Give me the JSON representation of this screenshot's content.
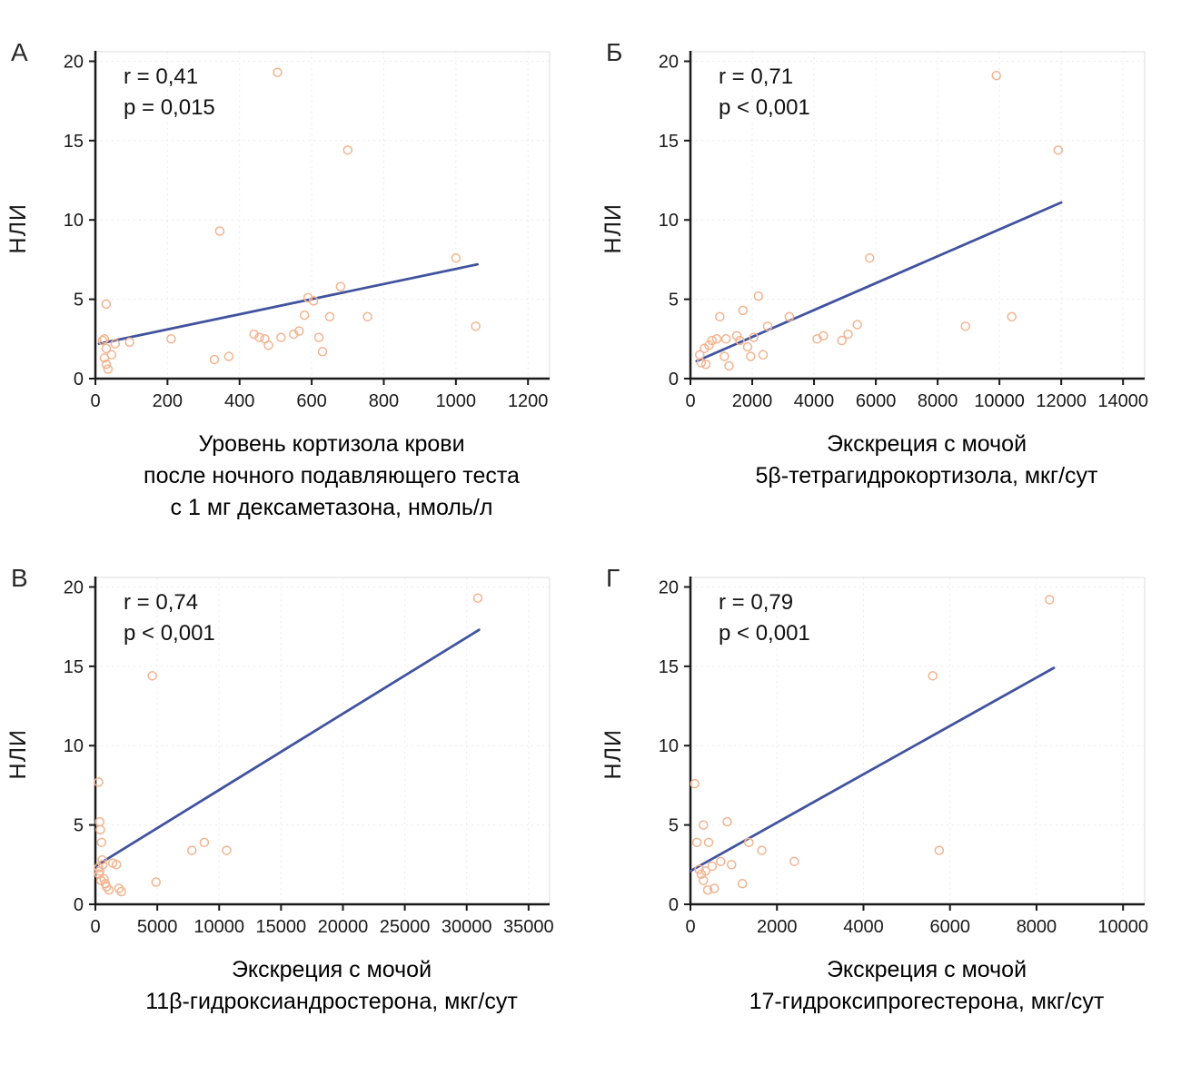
{
  "colors": {
    "point": "#f2b38f",
    "trend": "#41539e",
    "axis": "#1a1a1a",
    "grid": "#ececec",
    "frame": "#dcdcdc",
    "text": "#1a1a1a"
  },
  "chart_data": [
    {
      "type": "scatter",
      "panel": "А",
      "annotation": "r = 0,41\np = 0,015",
      "ylabel": "НЛИ",
      "caption": "Уровень кортизола крови\nпосле ночного подавляющего теста\nс 1 мг дексаметазона, нмоль/л",
      "xlim": [
        0,
        1260
      ],
      "ylim": [
        0,
        20.6
      ],
      "xticks": [
        0,
        200,
        400,
        600,
        800,
        1000,
        1200
      ],
      "yticks": [
        0,
        5,
        10,
        15,
        20
      ],
      "points": [
        [
          20,
          2.4
        ],
        [
          25,
          2.5
        ],
        [
          30,
          1.9
        ],
        [
          25,
          1.3
        ],
        [
          30,
          0.9
        ],
        [
          35,
          0.6
        ],
        [
          45,
          1.5
        ],
        [
          30,
          4.7
        ],
        [
          55,
          2.2
        ],
        [
          95,
          2.3
        ],
        [
          210,
          2.5
        ],
        [
          330,
          1.2
        ],
        [
          345,
          9.3
        ],
        [
          370,
          1.4
        ],
        [
          440,
          2.8
        ],
        [
          455,
          2.6
        ],
        [
          470,
          2.5
        ],
        [
          480,
          2.1
        ],
        [
          505,
          19.3
        ],
        [
          515,
          2.6
        ],
        [
          550,
          2.8
        ],
        [
          565,
          3.0
        ],
        [
          580,
          4.0
        ],
        [
          590,
          5.1
        ],
        [
          605,
          4.9
        ],
        [
          620,
          2.6
        ],
        [
          630,
          1.7
        ],
        [
          650,
          3.9
        ],
        [
          680,
          5.8
        ],
        [
          700,
          14.4
        ],
        [
          755,
          3.9
        ],
        [
          1000,
          7.6
        ],
        [
          1055,
          3.3
        ]
      ],
      "trend": {
        "x": [
          10,
          1060
        ],
        "y": [
          2.2,
          7.2
        ]
      }
    },
    {
      "type": "scatter",
      "panel": "Б",
      "annotation": "r = 0,71\np < 0,001",
      "ylabel": "НЛИ",
      "caption": "Экскреция с мочой\n5β-тетрагидрокортизола, мкг/сут",
      "xlim": [
        0,
        14700
      ],
      "ylim": [
        0,
        20.6
      ],
      "xticks": [
        0,
        2000,
        4000,
        6000,
        8000,
        10000,
        12000,
        14000
      ],
      "yticks": [
        0,
        5,
        10,
        15,
        20
      ],
      "points": [
        [
          300,
          1.5
        ],
        [
          350,
          1.0
        ],
        [
          450,
          1.9
        ],
        [
          500,
          0.9
        ],
        [
          600,
          2.1
        ],
        [
          700,
          2.4
        ],
        [
          850,
          2.5
        ],
        [
          950,
          3.9
        ],
        [
          1100,
          1.4
        ],
        [
          1150,
          2.5
        ],
        [
          1250,
          0.8
        ],
        [
          1500,
          2.7
        ],
        [
          1600,
          2.4
        ],
        [
          1700,
          4.3
        ],
        [
          1850,
          2.0
        ],
        [
          1950,
          1.4
        ],
        [
          2050,
          2.6
        ],
        [
          2200,
          5.2
        ],
        [
          2350,
          1.5
        ],
        [
          2500,
          3.3
        ],
        [
          3200,
          3.9
        ],
        [
          4100,
          2.5
        ],
        [
          4300,
          2.7
        ],
        [
          4900,
          2.4
        ],
        [
          5100,
          2.8
        ],
        [
          5400,
          3.4
        ],
        [
          5800,
          7.6
        ],
        [
          8900,
          3.3
        ],
        [
          9900,
          19.1
        ],
        [
          10400,
          3.9
        ],
        [
          11900,
          14.4
        ]
      ],
      "trend": {
        "x": [
          200,
          12000
        ],
        "y": [
          1.1,
          11.1
        ]
      }
    },
    {
      "type": "scatter",
      "panel": "В",
      "annotation": "r = 0,74\np < 0,001",
      "ylabel": "НЛИ",
      "caption": "Экскреция с мочой\n11β-гидроксиандростерона, мкг/сут",
      "xlim": [
        0,
        36700
      ],
      "ylim": [
        0,
        20.6
      ],
      "xticks": [
        0,
        5000,
        10000,
        15000,
        20000,
        25000,
        30000,
        35000
      ],
      "yticks": [
        0,
        5,
        10,
        15,
        20
      ],
      "points": [
        [
          250,
          7.7
        ],
        [
          350,
          5.2
        ],
        [
          400,
          4.7
        ],
        [
          500,
          3.9
        ],
        [
          600,
          2.5
        ],
        [
          250,
          2.3
        ],
        [
          350,
          2.1
        ],
        [
          700,
          1.6
        ],
        [
          800,
          1.3
        ],
        [
          900,
          1.1
        ],
        [
          1100,
          0.9
        ],
        [
          1400,
          2.6
        ],
        [
          1700,
          2.5
        ],
        [
          1900,
          1.0
        ],
        [
          2100,
          0.8
        ],
        [
          300,
          1.9
        ],
        [
          450,
          1.5
        ],
        [
          550,
          2.8
        ],
        [
          4600,
          14.4
        ],
        [
          4900,
          1.4
        ],
        [
          7800,
          3.4
        ],
        [
          8800,
          3.9
        ],
        [
          10600,
          3.4
        ],
        [
          30900,
          19.3
        ]
      ],
      "trend": {
        "x": [
          0,
          31000
        ],
        "y": [
          2.4,
          17.3
        ]
      }
    },
    {
      "type": "scatter",
      "panel": "Г",
      "annotation": "r = 0,79\np < 0,001",
      "ylabel": "НЛИ",
      "caption": "Экскреция с мочой\n17-гидроксипрогестерона, мкг/сут",
      "xlim": [
        0,
        10500
      ],
      "ylim": [
        0,
        20.6
      ],
      "xticks": [
        0,
        2000,
        4000,
        6000,
        8000,
        10000
      ],
      "yticks": [
        0,
        5,
        10,
        15,
        20
      ],
      "points": [
        [
          100,
          7.6
        ],
        [
          150,
          3.9
        ],
        [
          200,
          2.2
        ],
        [
          250,
          1.9
        ],
        [
          300,
          5.0
        ],
        [
          300,
          1.5
        ],
        [
          350,
          2.1
        ],
        [
          400,
          0.9
        ],
        [
          420,
          3.9
        ],
        [
          500,
          2.4
        ],
        [
          550,
          1.0
        ],
        [
          700,
          2.7
        ],
        [
          850,
          5.2
        ],
        [
          950,
          2.5
        ],
        [
          1200,
          1.3
        ],
        [
          1350,
          3.9
        ],
        [
          1650,
          3.4
        ],
        [
          2400,
          2.7
        ],
        [
          5600,
          14.4
        ],
        [
          5750,
          3.4
        ],
        [
          8300,
          19.2
        ]
      ],
      "trend": {
        "x": [
          0,
          8400
        ],
        "y": [
          2.1,
          14.9
        ]
      }
    }
  ]
}
